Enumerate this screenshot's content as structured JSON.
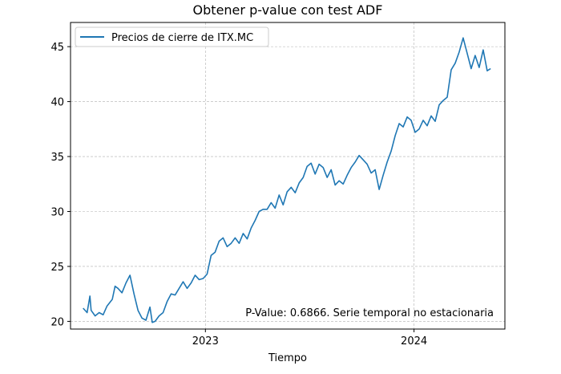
{
  "chart_data": {
    "type": "line",
    "title": "Obtener p-value con test ADF",
    "xlabel": "Tiempo",
    "ylabel": "",
    "x_ticks": [
      "2023-01-01",
      "2024-01-01"
    ],
    "x_tick_labels": [
      "2023",
      "2024"
    ],
    "y_ticks": [
      20,
      25,
      30,
      35,
      40,
      45
    ],
    "y_tick_labels": [
      "20",
      "25",
      "30",
      "35",
      "40",
      "45"
    ],
    "xlim": [
      "2022-05-10",
      "2024-06-08"
    ],
    "ylim": [
      19.3,
      47.2
    ],
    "grid": true,
    "legend": "upper-left",
    "annotation": "P-Value: 0.6866. Serie temporal no estacionaria",
    "colors": {
      "line": "#1f77b4",
      "grid": "#b0b0b0"
    },
    "series": [
      {
        "name": "Precios de cierre de ITX.MC",
        "x": [
          "2022-06-01",
          "2022-06-08",
          "2022-06-13",
          "2022-06-15",
          "2022-06-22",
          "2022-06-29",
          "2022-07-06",
          "2022-07-13",
          "2022-07-22",
          "2022-07-27",
          "2022-08-01",
          "2022-08-08",
          "2022-08-15",
          "2022-08-22",
          "2022-08-29",
          "2022-09-05",
          "2022-09-12",
          "2022-09-19",
          "2022-09-26",
          "2022-09-30",
          "2022-10-05",
          "2022-10-12",
          "2022-10-19",
          "2022-10-26",
          "2022-11-02",
          "2022-11-09",
          "2022-11-16",
          "2022-11-23",
          "2022-11-30",
          "2022-12-07",
          "2022-12-14",
          "2022-12-21",
          "2022-12-28",
          "2023-01-04",
          "2023-01-11",
          "2023-01-18",
          "2023-01-25",
          "2023-02-01",
          "2023-02-08",
          "2023-02-15",
          "2023-02-22",
          "2023-03-01",
          "2023-03-08",
          "2023-03-15",
          "2023-03-22",
          "2023-03-29",
          "2023-04-05",
          "2023-04-12",
          "2023-04-19",
          "2023-04-26",
          "2023-05-03",
          "2023-05-10",
          "2023-05-17",
          "2023-05-24",
          "2023-05-31",
          "2023-06-07",
          "2023-06-14",
          "2023-06-21",
          "2023-06-28",
          "2023-07-05",
          "2023-07-12",
          "2023-07-19",
          "2023-07-26",
          "2023-08-02",
          "2023-08-09",
          "2023-08-16",
          "2023-08-23",
          "2023-08-30",
          "2023-09-06",
          "2023-09-13",
          "2023-09-20",
          "2023-09-27",
          "2023-10-04",
          "2023-10-11",
          "2023-10-18",
          "2023-10-25",
          "2023-11-01",
          "2023-11-08",
          "2023-11-15",
          "2023-11-22",
          "2023-11-29",
          "2023-12-06",
          "2023-12-13",
          "2023-12-20",
          "2023-12-27",
          "2024-01-03",
          "2024-01-10",
          "2024-01-17",
          "2024-01-24",
          "2024-01-31",
          "2024-02-07",
          "2024-02-14",
          "2024-02-21",
          "2024-02-28",
          "2024-03-06",
          "2024-03-13",
          "2024-03-20",
          "2024-03-27",
          "2024-04-03",
          "2024-04-10",
          "2024-04-17",
          "2024-04-24",
          "2024-05-01",
          "2024-05-08",
          "2024-05-14"
        ],
        "values": [
          21.2,
          20.8,
          22.3,
          21.0,
          20.5,
          20.8,
          20.6,
          21.4,
          22.0,
          23.2,
          23.0,
          22.6,
          23.5,
          24.2,
          22.5,
          21.0,
          20.3,
          20.1,
          21.3,
          19.9,
          20.0,
          20.5,
          20.8,
          21.8,
          22.5,
          22.4,
          23.0,
          23.6,
          23.0,
          23.5,
          24.2,
          23.8,
          23.9,
          24.3,
          26.0,
          26.3,
          27.3,
          27.6,
          26.8,
          27.1,
          27.6,
          27.1,
          28.0,
          27.5,
          28.5,
          29.2,
          30.0,
          30.2,
          30.2,
          30.8,
          30.3,
          31.5,
          30.6,
          31.8,
          32.2,
          31.7,
          32.6,
          33.1,
          34.1,
          34.4,
          33.4,
          34.3,
          34.0,
          33.1,
          33.8,
          32.4,
          32.8,
          32.5,
          33.3,
          34.0,
          34.5,
          35.1,
          34.7,
          34.3,
          33.5,
          33.8,
          32.0,
          33.3,
          34.5,
          35.5,
          36.9,
          38.0,
          37.7,
          38.6,
          38.3,
          37.2,
          37.5,
          38.3,
          37.8,
          38.7,
          38.2,
          39.7,
          40.1,
          40.4,
          42.9,
          43.5,
          44.5,
          45.8,
          44.4,
          43.0,
          44.2,
          43.1,
          44.7,
          42.8,
          43.0
        ]
      }
    ]
  }
}
